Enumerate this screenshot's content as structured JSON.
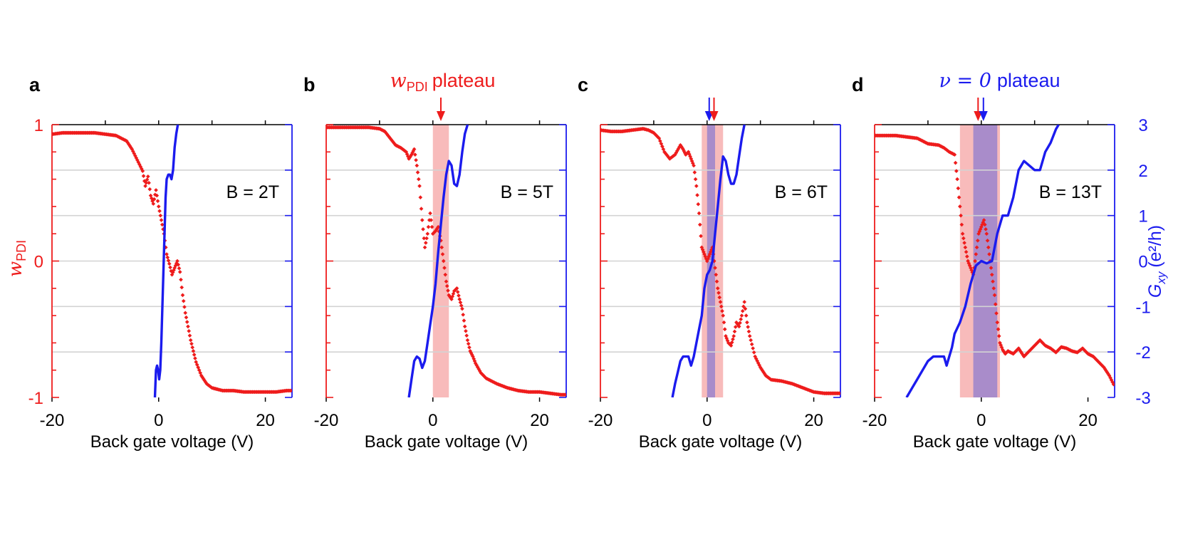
{
  "colors": {
    "red": "#ee1c1c",
    "blue": "#1b1bee",
    "grid": "#d3d3d3",
    "red_band": "#f7b4b4",
    "purple_band": "#9b84cc"
  },
  "axes": {
    "left_label_main": "w",
    "left_label_sub": "PDI",
    "right_label_main": "G",
    "right_label_sub": "xy",
    "right_label_units": "(e²/h)",
    "left_ticks": [
      "1",
      "0",
      "-1"
    ],
    "right_ticks": [
      "3",
      "2",
      "1",
      "0",
      "-1",
      "-2",
      "-3"
    ]
  },
  "chart_data": [
    {
      "type": "line",
      "panel": "a",
      "field": "B = 2T",
      "xlabel": "Back gate voltage (V)",
      "xlim": [
        -20,
        25
      ],
      "xticks": [
        "-20",
        "0",
        "20"
      ],
      "ylim_left": [
        -1,
        1
      ],
      "ylim_right": [
        -3,
        3
      ],
      "bands": [],
      "series": [
        {
          "name": "w_PDI",
          "axis": "left",
          "style": "markers",
          "x": [
            -20,
            -18,
            -16,
            -14,
            -12,
            -10,
            -8,
            -6,
            -5,
            -4,
            -3,
            -2.5,
            -2,
            -1.5,
            -1,
            -0.5,
            0,
            0.5,
            1,
            1.5,
            2,
            2.5,
            3,
            3.5,
            4,
            4.5,
            5,
            5.5,
            6,
            6.5,
            7,
            8,
            9,
            10,
            11,
            12,
            14,
            16,
            18,
            20,
            22,
            24,
            25
          ],
          "y": [
            0.93,
            0.94,
            0.94,
            0.94,
            0.94,
            0.93,
            0.92,
            0.88,
            0.82,
            0.74,
            0.66,
            0.55,
            0.62,
            0.48,
            0.42,
            0.52,
            0.4,
            0.3,
            0.2,
            0.05,
            -0.02,
            -0.1,
            -0.05,
            0.0,
            -0.08,
            -0.25,
            -0.38,
            -0.48,
            -0.58,
            -0.66,
            -0.74,
            -0.84,
            -0.9,
            -0.93,
            -0.94,
            -0.95,
            -0.95,
            -0.96,
            -0.96,
            -0.96,
            -0.96,
            -0.95,
            -0.95
          ]
        },
        {
          "name": "G_xy",
          "axis": "right",
          "style": "line",
          "x": [
            -0.7,
            -0.5,
            -0.3,
            -0.1,
            0.1,
            0.3,
            0.5,
            0.7,
            0.9,
            1.1,
            1.3,
            1.5,
            1.8,
            2.1,
            2.4,
            2.7,
            3.0,
            3.3,
            3.6
          ],
          "y": [
            -3,
            -2.4,
            -2.3,
            -2.4,
            -2.6,
            -2.4,
            -1.8,
            -1.0,
            -0.2,
            0.6,
            1.4,
            1.8,
            1.9,
            1.9,
            1.8,
            2.0,
            2.5,
            2.8,
            3
          ]
        }
      ]
    },
    {
      "type": "line",
      "panel": "b",
      "field": "B = 5T",
      "xlabel": "Back gate voltage (V)",
      "xlim": [
        -20,
        25
      ],
      "xticks": [
        "-20",
        "0",
        "20"
      ],
      "ylim_left": [
        -1,
        1
      ],
      "ylim_right": [
        -3,
        3
      ],
      "title_symbol": "w",
      "title_sub": "PDI",
      "title_text": "plateau",
      "arrows": [
        {
          "color": "red",
          "x": 1.5
        }
      ],
      "bands": [
        {
          "from": 0,
          "to": 3,
          "color": "red_band"
        }
      ],
      "series": [
        {
          "name": "w_PDI",
          "axis": "left",
          "style": "markers",
          "x": [
            -20,
            -18,
            -16,
            -14,
            -12,
            -10,
            -9,
            -8,
            -7,
            -6,
            -5,
            -4.5,
            -4,
            -3.5,
            -3,
            -2.5,
            -2,
            -1.5,
            -1,
            -0.5,
            0,
            0.5,
            1,
            1.5,
            2,
            2.5,
            3,
            3.5,
            4,
            4.5,
            5,
            5.5,
            6,
            6.5,
            7,
            7.5,
            8,
            9,
            10,
            11,
            12,
            14,
            16,
            18,
            20,
            22,
            24,
            25
          ],
          "y": [
            0.98,
            0.98,
            0.98,
            0.98,
            0.98,
            0.97,
            0.95,
            0.9,
            0.85,
            0.83,
            0.8,
            0.75,
            0.78,
            0.82,
            0.7,
            0.55,
            0.3,
            0.1,
            0.2,
            0.35,
            0.2,
            0.22,
            0.25,
            0.15,
            0.0,
            -0.15,
            -0.25,
            -0.28,
            -0.22,
            -0.2,
            -0.28,
            -0.35,
            -0.48,
            -0.58,
            -0.66,
            -0.7,
            -0.75,
            -0.82,
            -0.86,
            -0.88,
            -0.9,
            -0.93,
            -0.95,
            -0.96,
            -0.96,
            -0.97,
            -0.98,
            -0.98
          ]
        },
        {
          "name": "G_xy",
          "axis": "right",
          "style": "line",
          "x": [
            -4.5,
            -4,
            -3.5,
            -3,
            -2.5,
            -2,
            -1.5,
            -1,
            -0.5,
            0,
            0.5,
            1,
            1.5,
            2,
            2.5,
            3,
            3.5,
            4,
            4.5,
            5,
            5.5,
            6,
            6.5
          ],
          "y": [
            -3,
            -2.6,
            -2.2,
            -2.1,
            -2.15,
            -2.35,
            -2.2,
            -1.8,
            -1.4,
            -1.0,
            -0.5,
            0.2,
            0.8,
            1.4,
            1.9,
            2.2,
            2.1,
            1.7,
            1.65,
            1.9,
            2.4,
            2.8,
            3
          ]
        }
      ]
    },
    {
      "type": "line",
      "panel": "c",
      "field": "B = 6T",
      "xlabel": "Back gate voltage (V)",
      "xlim": [
        -20,
        25
      ],
      "xticks": [
        "-20",
        "0",
        "20"
      ],
      "ylim_left": [
        -1,
        1
      ],
      "ylim_right": [
        -3,
        3
      ],
      "arrows": [
        {
          "color": "blue",
          "x": 0.4
        },
        {
          "color": "red",
          "x": 1.3
        }
      ],
      "bands": [
        {
          "from": -1,
          "to": 3,
          "color": "red_band"
        },
        {
          "from": 0,
          "to": 1.5,
          "color": "purple_band"
        }
      ],
      "series": [
        {
          "name": "w_PDI",
          "axis": "left",
          "style": "markers",
          "x": [
            -20,
            -18,
            -16,
            -14,
            -12,
            -11,
            -10,
            -9,
            -8,
            -7,
            -6,
            -5,
            -4.5,
            -4,
            -3.5,
            -3,
            -2.5,
            -2,
            -1.5,
            -1,
            -0.5,
            0,
            0.5,
            1,
            1.5,
            2,
            2.5,
            3,
            3.5,
            4,
            4.5,
            5,
            5.5,
            6,
            6.5,
            7,
            7.5,
            8,
            9,
            10,
            11,
            12,
            14,
            16,
            18,
            20,
            22,
            24,
            25
          ],
          "y": [
            0.96,
            0.95,
            0.95,
            0.96,
            0.97,
            0.96,
            0.94,
            0.9,
            0.8,
            0.75,
            0.78,
            0.85,
            0.82,
            0.78,
            0.8,
            0.75,
            0.7,
            0.55,
            0.35,
            0.1,
            0.05,
            0.0,
            0.05,
            0.1,
            -0.05,
            -0.2,
            -0.3,
            -0.4,
            -0.55,
            -0.6,
            -0.62,
            -0.55,
            -0.45,
            -0.48,
            -0.4,
            -0.3,
            -0.45,
            -0.55,
            -0.7,
            -0.78,
            -0.84,
            -0.87,
            -0.88,
            -0.9,
            -0.93,
            -0.96,
            -0.97,
            -0.97,
            -0.97
          ]
        },
        {
          "name": "G_xy",
          "axis": "right",
          "style": "line",
          "x": [
            -6.5,
            -6,
            -5.5,
            -5,
            -4.5,
            -4,
            -3.5,
            -3,
            -2.5,
            -2,
            -1.5,
            -1,
            -0.5,
            0,
            0.5,
            1,
            1.5,
            2,
            2.5,
            3,
            3.5,
            4,
            4.5,
            5,
            5.5,
            6,
            6.5,
            7
          ],
          "y": [
            -3,
            -2.7,
            -2.45,
            -2.2,
            -2.1,
            -2.1,
            -2.1,
            -2.3,
            -2.1,
            -1.8,
            -1.5,
            -1.2,
            -0.6,
            -0.3,
            -0.2,
            0.0,
            0.6,
            1.2,
            1.8,
            2.3,
            2.2,
            1.9,
            1.7,
            1.7,
            1.9,
            2.3,
            2.7,
            3
          ]
        }
      ]
    },
    {
      "type": "line",
      "panel": "d",
      "field": "B = 13T",
      "xlabel": "Back gate voltage (V)",
      "xlim": [
        -20,
        25
      ],
      "xticks": [
        "-20",
        "0",
        "20"
      ],
      "ylim_left": [
        -1,
        1
      ],
      "ylim_right": [
        -3,
        3
      ],
      "title_symbol": "ν = 0",
      "title_text": "plateau",
      "arrows": [
        {
          "color": "red",
          "x": -0.6
        },
        {
          "color": "blue",
          "x": 0.4
        }
      ],
      "bands": [
        {
          "from": -4,
          "to": 3.5,
          "color": "red_band"
        },
        {
          "from": -1.5,
          "to": 3,
          "color": "purple_band"
        }
      ],
      "series": [
        {
          "name": "w_PDI",
          "axis": "left",
          "style": "markers",
          "x": [
            -20,
            -18,
            -16,
            -14,
            -12,
            -10,
            -8,
            -7,
            -6,
            -5,
            -4.5,
            -4,
            -3.5,
            -3,
            -2.5,
            -2,
            -1.5,
            -1,
            -0.5,
            0,
            0.5,
            1,
            1.5,
            2,
            2.5,
            3,
            3.5,
            4,
            4.5,
            5,
            6,
            7,
            8,
            9,
            10,
            11,
            12,
            13,
            14,
            15,
            16,
            17,
            18,
            19,
            20,
            21,
            22,
            23,
            24,
            25
          ],
          "y": [
            0.92,
            0.92,
            0.92,
            0.91,
            0.9,
            0.86,
            0.85,
            0.83,
            0.8,
            0.78,
            0.6,
            0.4,
            0.2,
            0.1,
            0.0,
            -0.05,
            -0.1,
            0.05,
            0.2,
            0.25,
            0.3,
            0.2,
            0.05,
            -0.1,
            -0.25,
            -0.45,
            -0.6,
            -0.65,
            -0.68,
            -0.66,
            -0.68,
            -0.64,
            -0.7,
            -0.66,
            -0.62,
            -0.58,
            -0.62,
            -0.64,
            -0.67,
            -0.63,
            -0.64,
            -0.66,
            -0.67,
            -0.64,
            -0.68,
            -0.7,
            -0.74,
            -0.78,
            -0.84,
            -0.92
          ]
        },
        {
          "name": "G_xy",
          "axis": "right",
          "style": "line",
          "x": [
            -14,
            -13,
            -12,
            -11,
            -10,
            -9,
            -8,
            -7,
            -6.5,
            -6,
            -5.5,
            -5,
            -4,
            -3,
            -2,
            -1,
            0,
            1,
            2,
            3,
            4,
            5,
            6,
            7,
            8,
            9,
            10,
            11,
            12,
            13,
            14,
            14.5
          ],
          "y": [
            -3,
            -2.8,
            -2.6,
            -2.4,
            -2.2,
            -2.1,
            -2.1,
            -2.1,
            -2.3,
            -2.1,
            -1.9,
            -1.6,
            -1.35,
            -1.0,
            -0.5,
            -0.1,
            0.0,
            -0.05,
            0.0,
            0.6,
            1.0,
            1.0,
            1.4,
            2.0,
            2.2,
            2.1,
            2.0,
            2.0,
            2.4,
            2.6,
            2.9,
            3
          ]
        }
      ]
    }
  ]
}
